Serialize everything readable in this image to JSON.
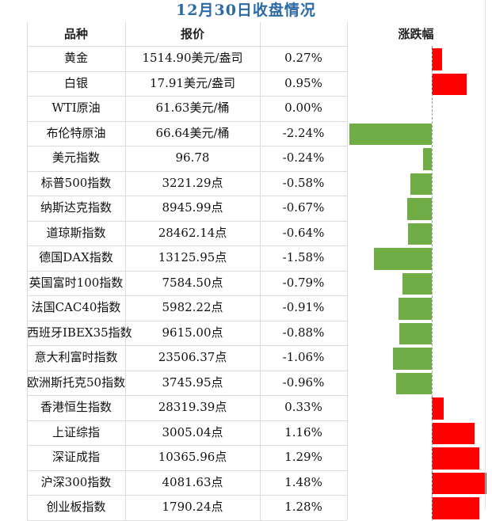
{
  "title": "12月30日收盘情况",
  "headers": {
    "name": "品种",
    "price": "报价",
    "change": "涨跌幅"
  },
  "colors": {
    "up": "#ff0000",
    "down": "#70ad47",
    "title": "#2c6aa6"
  },
  "chart_data": {
    "type": "bar",
    "orientation": "horizontal",
    "categories": [
      "黄金",
      "白银",
      "WTI原油",
      "布伦特原油",
      "美元指数",
      "标普500指数",
      "纳斯达克指数",
      "道琼斯指数",
      "德国DAX指数",
      "英国富时100指数",
      "法国CAC40指数",
      "西班牙IBEX35指数",
      "意大利富时指数",
      "欧洲斯托克50指数",
      "香港恒生指数",
      "上证综指",
      "深证成指",
      "沪深300指数",
      "创业板指数"
    ],
    "values": [
      0.27,
      0.95,
      0.0,
      -2.24,
      -0.24,
      -0.58,
      -0.67,
      -0.64,
      -1.58,
      -0.79,
      -0.91,
      -0.88,
      -1.06,
      -0.96,
      0.33,
      1.16,
      1.29,
      1.48,
      1.28
    ]
  },
  "rows": [
    {
      "name": "黄金",
      "price": "1514.90美元/盎司",
      "pct": "0.27%"
    },
    {
      "name": "白银",
      "price": "17.91美元/盎司",
      "pct": "0.95%"
    },
    {
      "name": "WTI原油",
      "price": "61.63美元/桶",
      "pct": "0.00%"
    },
    {
      "name": "布伦特原油",
      "price": "66.64美元/桶",
      "pct": "-2.24%"
    },
    {
      "name": "美元指数",
      "price": "96.78",
      "pct": "-0.24%"
    },
    {
      "name": "标普500指数",
      "price": "3221.29点",
      "pct": "-0.58%"
    },
    {
      "name": "纳斯达克指数",
      "price": "8945.99点",
      "pct": "-0.67%"
    },
    {
      "name": "道琼斯指数",
      "price": "28462.14点",
      "pct": "-0.64%"
    },
    {
      "name": "德国DAX指数",
      "price": "13125.95点",
      "pct": "-1.58%"
    },
    {
      "name": "英国富时100指数",
      "price": "7584.50点",
      "pct": "-0.79%"
    },
    {
      "name": "法国CAC40指数",
      "price": "5982.22点",
      "pct": "-0.91%"
    },
    {
      "name": "西班牙IBEX35指数",
      "price": "9615.00点",
      "pct": "-0.88%"
    },
    {
      "name": "意大利富时指数",
      "price": "23506.37点",
      "pct": "-1.06%"
    },
    {
      "name": "欧洲斯托克50指数",
      "price": "3745.95点",
      "pct": "-0.96%"
    },
    {
      "name": "香港恒生指数",
      "price": "28319.39点",
      "pct": "0.33%"
    },
    {
      "name": "上证综指",
      "price": "3005.04点",
      "pct": "1.16%"
    },
    {
      "name": "深证成指",
      "price": "10365.96点",
      "pct": "1.29%"
    },
    {
      "name": "沪深300指数",
      "price": "4081.63点",
      "pct": "1.48%"
    },
    {
      "name": "创业板指数",
      "price": "1790.24点",
      "pct": "1.28%"
    }
  ]
}
